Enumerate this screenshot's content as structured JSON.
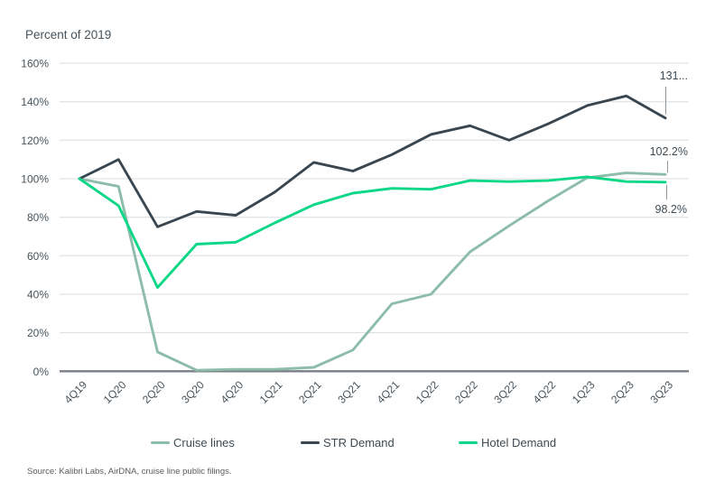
{
  "chart": {
    "title": "Percent of 2019",
    "source": "Source: Kalibri Labs, AirDNA, cruise line public filings."
  },
  "annotations": {
    "str_end": "131...",
    "cruise_end": "102.2%",
    "hotel_end": "98.2%"
  },
  "legend": {
    "items": [
      {
        "label": "Cruise lines",
        "color": "#8dbcab"
      },
      {
        "label": "STR Demand",
        "color": "#394650"
      },
      {
        "label": "Hotel Demand",
        "color": "#0bd786"
      }
    ]
  },
  "colors": {
    "gridline": "#d9dde0",
    "axis_line": "#7a7f85",
    "leader_line": "#8f989e",
    "tick_text": "#47525a"
  },
  "chart_data": {
    "type": "line",
    "title": "Percent of 2019",
    "xlabel": "",
    "ylabel": "Percent of 2019",
    "ylim": [
      0,
      160
    ],
    "ytick_step": 20,
    "ytick_suffix": "%",
    "grid": "horizontal",
    "legend_position": "bottom",
    "categories": [
      "4Q19",
      "1Q20",
      "2Q20",
      "3Q20",
      "4Q20",
      "1Q21",
      "2Q21",
      "3Q21",
      "4Q21",
      "1Q22",
      "2Q22",
      "3Q22",
      "4Q22",
      "1Q23",
      "2Q23",
      "3Q23"
    ],
    "series": [
      {
        "name": "Cruise lines",
        "color": "#8dbcab",
        "values": [
          100,
          96,
          10,
          0.5,
          1,
          1,
          2,
          11,
          35,
          40,
          62,
          75.5,
          88.5,
          100.5,
          103,
          102.2
        ]
      },
      {
        "name": "STR Demand",
        "color": "#394650",
        "values": [
          100,
          110,
          75,
          83,
          81,
          93,
          108.5,
          104,
          112.5,
          123,
          127.5,
          120,
          128.5,
          138,
          143,
          131.5
        ]
      },
      {
        "name": "Hotel Demand",
        "color": "#0bd786",
        "values": [
          100,
          86,
          43.5,
          66,
          67,
          77,
          86.5,
          92.5,
          95,
          94.5,
          99,
          98.5,
          99,
          101,
          98.5,
          98.2
        ]
      }
    ],
    "end_labels": [
      {
        "series": "STR Demand",
        "at": "3Q23",
        "text": "131..."
      },
      {
        "series": "Cruise lines",
        "at": "3Q23",
        "text": "102.2%"
      },
      {
        "series": "Hotel Demand",
        "at": "3Q23",
        "text": "98.2%"
      }
    ]
  }
}
